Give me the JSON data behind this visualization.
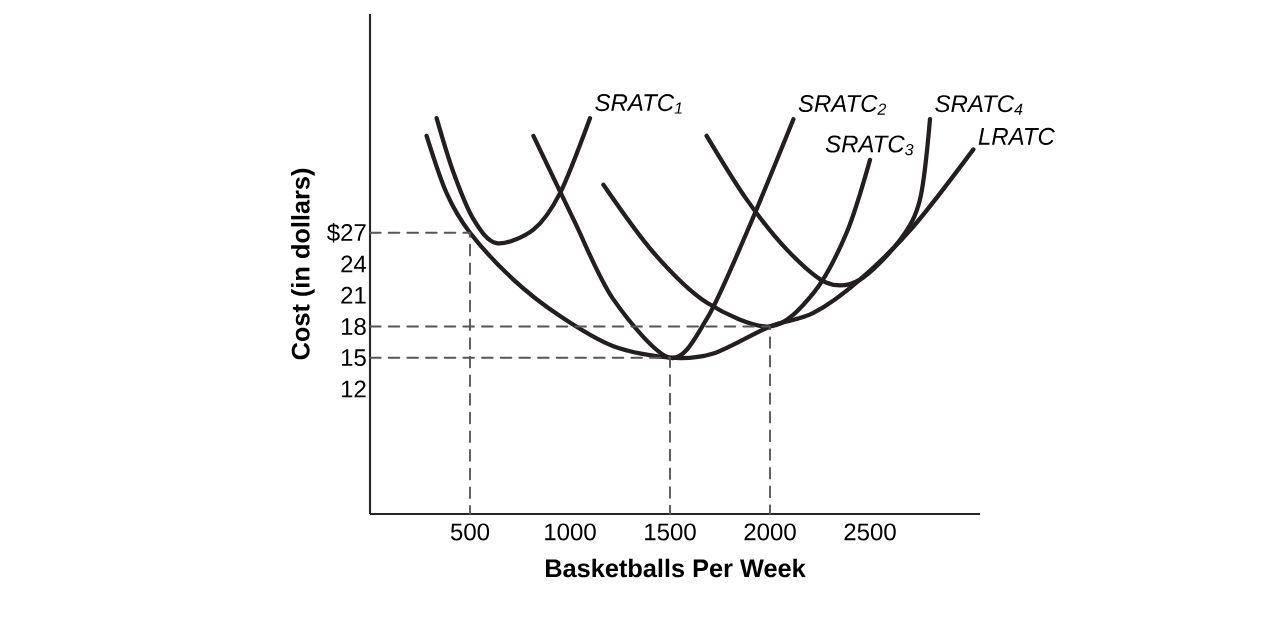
{
  "chart_data": {
    "type": "line",
    "xlabel": "Basketballs Per Week",
    "ylabel": "Cost (in dollars)",
    "xlim": [
      0,
      3050
    ],
    "ylim": [
      0,
      48
    ],
    "xticks": [
      500,
      1000,
      1500,
      2000,
      2500
    ],
    "yticks": [
      12,
      15,
      18,
      21,
      24,
      {
        "value": 27,
        "label": "$27"
      }
    ],
    "legend": false,
    "grid": false,
    "marker": "none",
    "series": [
      {
        "name": "SRATC$_{1}$",
        "color": "#231f20",
        "line_style": "solid",
        "x": [
          333,
          417,
          517,
          633,
          817,
          950,
          1100
        ],
        "values": [
          38.0,
          32.8,
          28.3,
          26.0,
          27.3,
          30.8,
          38.0
        ]
      },
      {
        "name": "SRATC$_{2}$",
        "color": "#231f20",
        "line_style": "solid",
        "x": [
          817,
          1017,
          1217,
          1500,
          1683,
          1883,
          2117
        ],
        "values": [
          36.3,
          28.3,
          20.6,
          15,
          18.7,
          27.0,
          37.9
        ]
      },
      {
        "name": "SRATC$_{3}$",
        "color": "#231f20",
        "line_style": "solid",
        "x": [
          1167,
          1417,
          1683,
          2000,
          2217,
          2383,
          2500
        ],
        "values": [
          31.6,
          25.1,
          20.3,
          18,
          21.2,
          27.0,
          34.0
        ]
      },
      {
        "name": "SRATC$_{4}$",
        "color": "#231f20",
        "line_style": "solid",
        "x": [
          1683,
          1883,
          2083,
          2283,
          2450,
          2650,
          2750,
          2800
        ],
        "values": [
          36.3,
          30.2,
          25.4,
          22.2,
          22.5,
          26.3,
          30.2,
          37.9
        ]
      },
      {
        "name": "LRATC",
        "color": "#231f20",
        "line_style": "solid",
        "x": [
          283,
          383,
          500,
          717,
          950,
          1217,
          1500,
          1717,
          2000,
          2217,
          2450,
          2717,
          3017
        ],
        "values": [
          36.3,
          30.8,
          27,
          22.5,
          19.0,
          16.1,
          15,
          15.4,
          18,
          19.3,
          22.5,
          27.6,
          35.0
        ]
      },
      {
        "color": "#555555",
        "line_style": "dashed",
        "x": [
          0,
          500,
          500
        ],
        "values": [
          27,
          27,
          0
        ]
      },
      {
        "color": "#555555",
        "line_style": "dashed",
        "x": [
          0,
          1500,
          1500
        ],
        "values": [
          15,
          15,
          0
        ]
      },
      {
        "color": "#555555",
        "line_style": "dashed",
        "x": [
          0,
          2000,
          2000
        ],
        "values": [
          18,
          18,
          0
        ]
      }
    ]
  }
}
